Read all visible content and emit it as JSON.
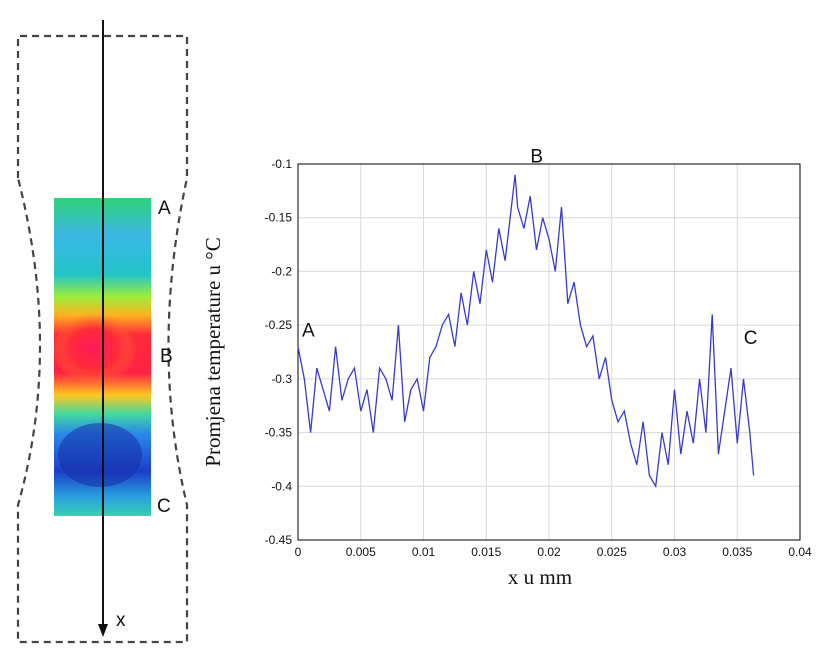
{
  "specimen": {
    "point_labels": [
      "A",
      "B",
      "C"
    ],
    "axis_label": "x"
  },
  "chart_data": {
    "type": "line",
    "title": "",
    "xlabel": "x u mm",
    "ylabel": "Promjena temperature u °C",
    "xlim": [
      0,
      0.04
    ],
    "ylim": [
      -0.45,
      -0.1
    ],
    "x_ticks": [
      "0",
      "0.005",
      "0.01",
      "0.015",
      "0.02",
      "0.025",
      "0.03",
      "0.035",
      "0.04"
    ],
    "y_ticks": [
      "-0.1",
      "-0.15",
      "-0.2",
      "-0.25",
      "-0.3",
      "-0.35",
      "-0.4",
      "-0.45"
    ],
    "grid": true,
    "series_color": "#3a3ac8",
    "annotations": [
      {
        "label": "A",
        "x": 0.0,
        "y": -0.255
      },
      {
        "label": "B",
        "x": 0.0182,
        "y": -0.093
      },
      {
        "label": "C",
        "x": 0.0352,
        "y": -0.262
      }
    ],
    "series": [
      {
        "x": [
          0.0,
          0.0005,
          0.001,
          0.0015,
          0.002,
          0.0025,
          0.003,
          0.0035,
          0.004,
          0.0045,
          0.005,
          0.0055,
          0.006,
          0.0065,
          0.007,
          0.0075,
          0.008,
          0.0085,
          0.009,
          0.0095,
          0.01,
          0.0105,
          0.011,
          0.0115,
          0.012,
          0.0125,
          0.013,
          0.0135,
          0.014,
          0.0145,
          0.015,
          0.0155,
          0.016,
          0.0165,
          0.017,
          0.0173,
          0.0175,
          0.018,
          0.0185,
          0.019,
          0.0195,
          0.02,
          0.0205,
          0.021,
          0.0215,
          0.022,
          0.0225,
          0.023,
          0.0235,
          0.024,
          0.0245,
          0.025,
          0.0255,
          0.026,
          0.0265,
          0.027,
          0.0275,
          0.028,
          0.0285,
          0.029,
          0.0295,
          0.03,
          0.0305,
          0.031,
          0.0315,
          0.032,
          0.0325,
          0.033,
          0.0335,
          0.034,
          0.0345,
          0.035,
          0.0355,
          0.036,
          0.0363
        ],
        "values": [
          -0.27,
          -0.3,
          -0.35,
          -0.29,
          -0.31,
          -0.33,
          -0.27,
          -0.32,
          -0.3,
          -0.29,
          -0.33,
          -0.31,
          -0.35,
          -0.29,
          -0.3,
          -0.32,
          -0.25,
          -0.34,
          -0.31,
          -0.3,
          -0.33,
          -0.28,
          -0.27,
          -0.25,
          -0.24,
          -0.27,
          -0.22,
          -0.25,
          -0.2,
          -0.23,
          -0.18,
          -0.21,
          -0.16,
          -0.19,
          -0.14,
          -0.11,
          -0.14,
          -0.16,
          -0.13,
          -0.18,
          -0.15,
          -0.17,
          -0.2,
          -0.14,
          -0.23,
          -0.21,
          -0.25,
          -0.27,
          -0.26,
          -0.3,
          -0.28,
          -0.32,
          -0.34,
          -0.33,
          -0.36,
          -0.38,
          -0.34,
          -0.39,
          -0.4,
          -0.35,
          -0.38,
          -0.31,
          -0.37,
          -0.33,
          -0.36,
          -0.3,
          -0.35,
          -0.24,
          -0.37,
          -0.33,
          -0.29,
          -0.36,
          -0.3,
          -0.35,
          -0.39
        ]
      }
    ]
  }
}
